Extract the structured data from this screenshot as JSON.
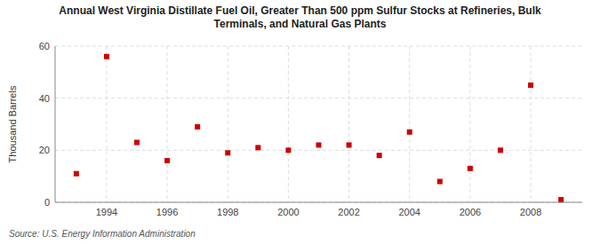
{
  "chart_data": {
    "type": "scatter",
    "title": "Annual West Virginia Distillate Fuel Oil, Greater Than 500 ppm Sulfur Stocks at Refineries, Bulk\nTerminals, and Natural Gas Plants",
    "y_label": "Thousand Barrels",
    "annotations": [
      "Source: U.S. Energy Information Administration"
    ],
    "x": [
      1993,
      1994,
      1995,
      1996,
      1997,
      1998,
      1999,
      2000,
      2001,
      2002,
      2003,
      2004,
      2005,
      2006,
      2007,
      2008,
      2009
    ],
    "values": [
      11,
      56,
      23,
      16,
      29,
      19,
      21,
      20,
      22,
      22,
      18,
      27,
      8,
      13,
      20,
      45,
      1
    ],
    "color": "#cc0000",
    "marker": "square",
    "xlim": [
      1992.3,
      2009.7
    ],
    "xticks": [
      1994,
      1996,
      1998,
      2000,
      2002,
      2004,
      2006,
      2008
    ],
    "ylim": [
      0,
      60
    ],
    "yticks": [
      0,
      20,
      40,
      60
    ],
    "grid": true
  }
}
